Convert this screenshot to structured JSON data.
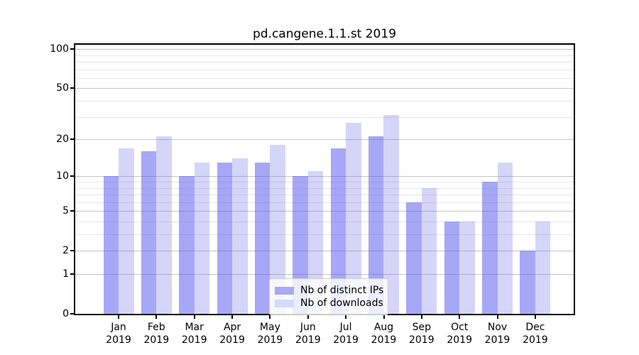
{
  "figure": {
    "title": "pd.cangene.1.1.st 2019"
  },
  "chart_data": {
    "type": "bar",
    "title": "pd.cangene.1.1.st 2019",
    "xlabel": "",
    "ylabel": "",
    "categories": [
      "Jan\n2019",
      "Feb\n2019",
      "Mar\n2019",
      "Apr\n2019",
      "May\n2019",
      "Jun\n2019",
      "Jul\n2019",
      "Aug\n2019",
      "Sep\n2019",
      "Oct\n2019",
      "Nov\n2019",
      "Dec\n2019"
    ],
    "series": [
      {
        "name": "Nb of distinct IPs",
        "key": "distinct-ips",
        "color": "#a8a8f7",
        "color_rgba": "rgba(80,80,240,0.5)",
        "values": [
          10,
          16,
          10,
          13,
          13,
          10,
          17,
          21,
          6,
          4,
          9,
          2
        ]
      },
      {
        "name": "Nb of downloads",
        "key": "downloads",
        "color": "#d8d8f8",
        "color_rgba": "rgba(100,100,235,0.27)",
        "values": [
          17,
          21,
          13,
          14,
          18,
          11,
          27,
          31,
          8,
          4,
          13,
          4
        ]
      }
    ],
    "yscale": "log1p",
    "y_major_ticks": [
      0,
      1,
      2,
      5,
      10,
      20,
      50,
      100
    ],
    "y_minor_gridlines": [
      3,
      4,
      6,
      7,
      8,
      9,
      30,
      40,
      60,
      70,
      80,
      90
    ],
    "ylim": [
      0,
      113
    ],
    "grid": true,
    "legend_position": "lower center"
  },
  "colors": {
    "background": "#ffffff",
    "axis": "#000000",
    "major_grid": "#c4c4c4",
    "minor_grid": "#e6e6e6",
    "legend_border": "#cccccc",
    "bar_distinct_ips": "#a8a8f7",
    "bar_downloads": "#d8d8f8"
  }
}
